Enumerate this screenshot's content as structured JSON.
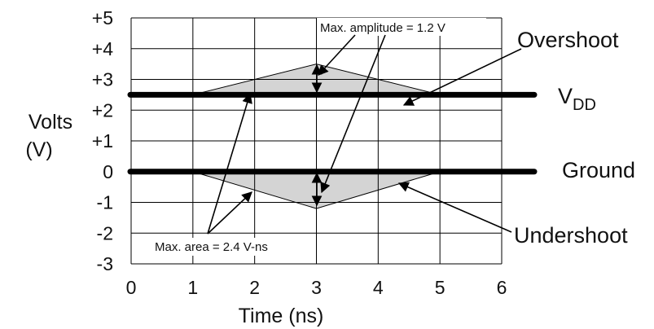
{
  "diagram": {
    "y_axis_title_line1": "Volts",
    "y_axis_title_line2": "(V)",
    "x_axis_title": "Time (ns)",
    "y_ticks": [
      "+5",
      "+4",
      "+3",
      "+2",
      "+1",
      "0",
      "-1",
      "-2",
      "-3"
    ],
    "x_ticks": [
      "0",
      "1",
      "2",
      "3",
      "4",
      "5",
      "6"
    ],
    "labels": {
      "overshoot": "Overshoot",
      "vdd_main": "V",
      "vdd_sub": "DD",
      "ground": "Ground",
      "undershoot": "Undershoot",
      "max_amplitude": "Max. amplitude = 1.2 V",
      "max_area": "Max. area = 2.4 V-ns"
    },
    "levels": {
      "vdd_volts": 2.5,
      "ground_volts": 0
    },
    "overshoot_triangle": [
      [
        1.0,
        2.5
      ],
      [
        3.0,
        3.5
      ],
      [
        5.0,
        2.5
      ]
    ],
    "undershoot_triangle": [
      [
        1.0,
        0
      ],
      [
        3.0,
        -1.2
      ],
      [
        5.0,
        0
      ]
    ],
    "colors": {
      "fill": "#d4d4d4",
      "rail": "#000000",
      "grid": "#000000"
    }
  }
}
